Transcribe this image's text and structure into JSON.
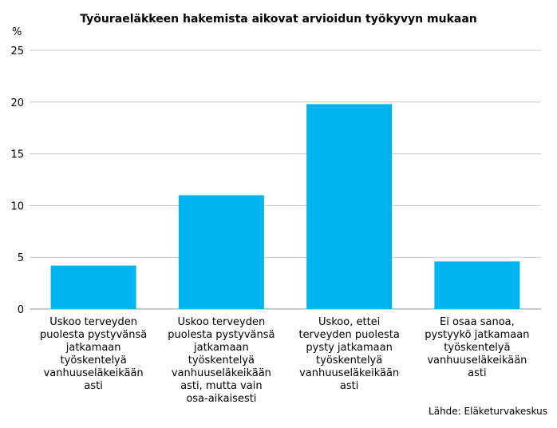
{
  "chart_data": {
    "type": "bar",
    "title": "Työuraeläkkeen hakemista aikovat arvioidun työkyvyn mukaan",
    "ylabel": "%",
    "xlabel": "",
    "ylim": [
      0,
      25
    ],
    "yticks": [
      0,
      5,
      10,
      15,
      20,
      25
    ],
    "grid": true,
    "bar_color": "#00b4f0",
    "categories": [
      [
        "Uskoo terveyden",
        "puolesta pystyvänsä",
        "jatkamaan",
        "työskentelyä",
        "vanhuuseläkeikään",
        "asti"
      ],
      [
        "Uskoo terveyden",
        "puolesta pystyvänsä",
        "jatkamaan",
        "työskentelyä",
        "vanhuuseläkeikään",
        "asti, mutta vain",
        "osa-aikaisesti"
      ],
      [
        "Uskoo, ettei",
        "terveyden puolesta",
        "pysty jatkamaan",
        "työskentelyä",
        "vanhuuseläkeikään",
        "asti"
      ],
      [
        "Ei osaa sanoa,",
        "pystyykö jatkamaan",
        "työskentelyä",
        "vanhuuseläkeikään",
        "asti"
      ]
    ],
    "values": [
      4.2,
      11.0,
      19.8,
      4.6
    ]
  },
  "source": "Lähde: Eläketurvakeskus"
}
